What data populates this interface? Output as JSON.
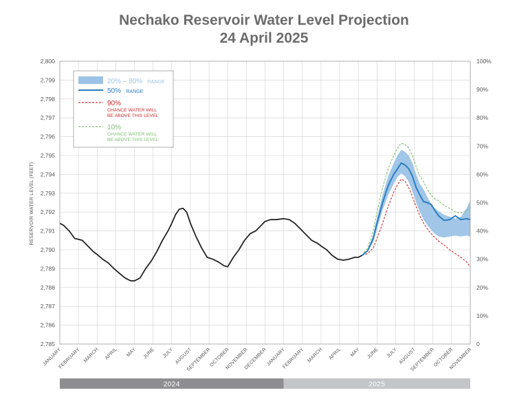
{
  "title": {
    "line1": "Nechako Reservoir Water Level Projection",
    "line2": "24 April 2025"
  },
  "chart_data": {
    "type": "line",
    "ylabel": "RESERVOIR WATER LEVEL (FEET)",
    "ylim": [
      2785,
      2800
    ],
    "y_ticks": [
      "2,800",
      "2,799",
      "2,798",
      "2,797",
      "2,796",
      "2,795",
      "2,794",
      "2,793",
      "2,792",
      "2,791",
      "2,790",
      "2,789",
      "2,788",
      "2,787",
      "2,786",
      "2,785"
    ],
    "y2_ticks": [
      "100%",
      "90%",
      "80%",
      "70%",
      "60%",
      "50%",
      "40%",
      "30%",
      "20%",
      "10%",
      "0"
    ],
    "x_months": [
      "JANUARY",
      "FEBRUARY",
      "MARCH",
      "APRIL",
      "MAY",
      "JUNE",
      "JULY",
      "AUGUST",
      "SEPTEMBER",
      "OCTOBER",
      "NOVEMBER",
      "DECEMBER",
      "JANUARY",
      "FEBRUARY",
      "MARCH",
      "APRIL",
      "MAY",
      "JUNE",
      "JULY",
      "AUGUST",
      "SEPTEMBER",
      "OCTOBER",
      "NOVEMBER"
    ],
    "x_range_months": [
      0,
      22
    ],
    "grid": true,
    "legend_position": "top-left",
    "years": [
      {
        "label": "2024",
        "months": [
          0,
          12
        ],
        "color": "#8e8e90"
      },
      {
        "label": "2025",
        "months": [
          12,
          22
        ],
        "color": "#c3c5c8"
      }
    ],
    "legend": {
      "range": {
        "label": "20% – 80%",
        "suffix": "RANGE",
        "color": "#9cc3e6"
      },
      "median": {
        "label": "50%",
        "suffix": "RANGE",
        "color": "#2b7ec1"
      },
      "p90": {
        "label": "90%",
        "line1": "CHANCE WATER WILL",
        "line2": "BE ABOVE THIS LEVEL",
        "color": "#d02a2a"
      },
      "p10": {
        "label": "10%",
        "line1": "CHANCE WATER WILL",
        "line2": "BE ABOVE THIS LEVEL",
        "color": "#7cbf6e"
      }
    },
    "series": [
      {
        "key": "observed",
        "color": "#222222",
        "x": [
          0,
          0.2,
          0.5,
          0.8,
          1.0,
          1.2,
          1.5,
          1.8,
          2.0,
          2.3,
          2.6,
          2.9,
          3.2,
          3.5,
          3.8,
          4.0,
          4.3,
          4.6,
          4.9,
          5.2,
          5.5,
          5.8,
          6.0,
          6.2,
          6.4,
          6.6,
          6.8,
          7.0,
          7.3,
          7.6,
          7.9,
          8.2,
          8.5,
          8.8,
          9.0,
          9.3,
          9.6,
          9.9,
          10.2,
          10.5,
          10.8,
          11.0,
          11.3,
          11.6,
          12.0,
          12.3,
          12.6,
          12.9,
          13.2,
          13.5,
          13.8,
          14.0,
          14.3,
          14.6,
          14.9,
          15.2,
          15.5,
          15.8,
          16.0,
          16.2
        ],
        "y": [
          2791.4,
          2791.3,
          2791.0,
          2790.6,
          2790.55,
          2790.5,
          2790.2,
          2789.9,
          2789.75,
          2789.5,
          2789.3,
          2789.0,
          2788.75,
          2788.5,
          2788.35,
          2788.35,
          2788.5,
          2789.0,
          2789.4,
          2789.9,
          2790.5,
          2791.0,
          2791.4,
          2791.85,
          2792.15,
          2792.2,
          2792.0,
          2791.4,
          2790.7,
          2790.1,
          2789.6,
          2789.5,
          2789.35,
          2789.15,
          2789.1,
          2789.6,
          2790.0,
          2790.5,
          2790.85,
          2791.0,
          2791.3,
          2791.5,
          2791.6,
          2791.6,
          2791.65,
          2791.6,
          2791.4,
          2791.1,
          2790.8,
          2790.5,
          2790.35,
          2790.2,
          2790.0,
          2789.7,
          2789.5,
          2789.45,
          2789.5,
          2789.6,
          2789.6,
          2789.7
        ]
      },
      {
        "key": "p10",
        "color": "#7cbf6e",
        "dashed": true,
        "x": [
          16.2,
          16.5,
          16.8,
          17.0,
          17.3,
          17.6,
          17.9,
          18.1,
          18.3,
          18.5,
          18.7,
          18.9,
          19.1,
          19.3,
          19.5,
          19.7,
          19.9,
          20.1,
          20.3,
          20.6,
          20.9,
          21.2,
          21.5,
          21.8,
          22.0
        ],
        "y": [
          2789.7,
          2790.1,
          2791.0,
          2792.0,
          2793.3,
          2794.3,
          2795.0,
          2795.4,
          2795.65,
          2795.6,
          2795.4,
          2795.0,
          2794.4,
          2793.9,
          2793.6,
          2793.2,
          2792.9,
          2792.7,
          2792.6,
          2792.35,
          2792.2,
          2792.0,
          2791.95,
          2792.05,
          2792.25
        ]
      },
      {
        "key": "p80",
        "color": "#2b7ec1",
        "x": [
          16.2,
          16.5,
          16.8,
          17.0,
          17.3,
          17.6,
          17.9,
          18.1,
          18.3,
          18.5,
          18.7,
          18.9,
          19.1,
          19.3,
          19.5,
          19.7,
          19.9,
          20.1,
          20.3,
          20.6,
          20.9,
          21.2,
          21.5,
          21.8,
          22.0
        ],
        "y": [
          2789.7,
          2790.0,
          2790.8,
          2791.7,
          2792.9,
          2793.9,
          2794.6,
          2795.0,
          2795.3,
          2795.2,
          2795.0,
          2794.6,
          2794.0,
          2793.5,
          2793.2,
          2792.8,
          2792.45,
          2792.2,
          2792.05,
          2791.85,
          2791.75,
          2791.65,
          2791.75,
          2792.2,
          2792.6
        ]
      },
      {
        "key": "p50",
        "color": "#2b7ec1",
        "x": [
          16.2,
          16.5,
          16.8,
          17.0,
          17.3,
          17.6,
          17.9,
          18.1,
          18.3,
          18.5,
          18.7,
          18.9,
          19.1,
          19.3,
          19.5,
          19.7,
          19.9,
          20.1,
          20.3,
          20.6,
          20.9,
          21.2,
          21.5,
          21.8,
          22.0
        ],
        "y": [
          2789.7,
          2789.95,
          2790.6,
          2791.4,
          2792.5,
          2793.4,
          2794.0,
          2794.3,
          2794.6,
          2794.5,
          2794.3,
          2793.9,
          2793.3,
          2792.9,
          2792.55,
          2792.5,
          2792.4,
          2792.1,
          2791.8,
          2791.55,
          2791.6,
          2791.8,
          2791.6,
          2791.65,
          2791.6
        ]
      },
      {
        "key": "p20",
        "color": "#2b7ec1",
        "x": [
          16.2,
          16.5,
          16.8,
          17.0,
          17.3,
          17.6,
          17.9,
          18.1,
          18.3,
          18.5,
          18.7,
          18.9,
          19.1,
          19.3,
          19.5,
          19.7,
          19.9,
          20.1,
          20.3,
          20.6,
          20.9,
          21.2,
          21.5,
          21.8,
          22.0
        ],
        "y": [
          2789.7,
          2789.9,
          2790.4,
          2791.1,
          2792.1,
          2792.9,
          2793.5,
          2793.85,
          2794.05,
          2793.9,
          2793.6,
          2793.1,
          2792.5,
          2792.0,
          2791.6,
          2791.3,
          2791.05,
          2790.85,
          2790.7,
          2790.65,
          2790.7,
          2790.75,
          2790.7,
          2790.75,
          2790.7
        ]
      },
      {
        "key": "p90",
        "color": "#d02a2a",
        "dashed": true,
        "x": [
          16.2,
          16.5,
          16.8,
          17.0,
          17.3,
          17.6,
          17.9,
          18.1,
          18.3,
          18.5,
          18.7,
          18.9,
          19.1,
          19.3,
          19.5,
          19.7,
          19.9,
          20.1,
          20.3,
          20.6,
          20.9,
          21.2,
          21.5,
          21.8,
          22.0
        ],
        "y": [
          2789.7,
          2789.8,
          2790.1,
          2790.6,
          2791.4,
          2792.3,
          2793.05,
          2793.45,
          2793.75,
          2793.65,
          2793.3,
          2792.8,
          2792.3,
          2791.8,
          2791.4,
          2791.1,
          2790.85,
          2790.65,
          2790.45,
          2790.25,
          2790.0,
          2789.8,
          2789.6,
          2789.35,
          2789.1
        ]
      }
    ]
  }
}
